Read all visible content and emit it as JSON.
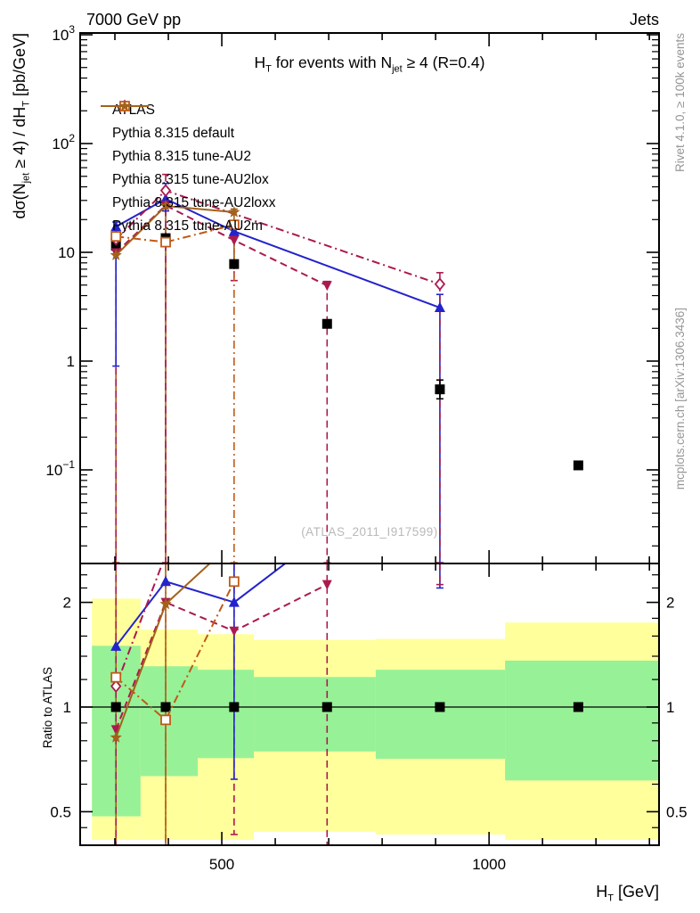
{
  "header": {
    "left": "7000 GeV pp",
    "right": "Jets"
  },
  "title_rich": [
    [
      "t",
      "H"
    ],
    [
      "sub",
      "T"
    ],
    [
      "t",
      " for events with N"
    ],
    [
      "sub",
      "jet"
    ],
    [
      "t",
      " ≥ 4 (R=0.4)"
    ]
  ],
  "ylabel_rich": [
    [
      "t",
      "dσ(N"
    ],
    [
      "sub",
      "jet"
    ],
    [
      "t",
      " ≥ 4) / dH"
    ],
    [
      "sub",
      "T"
    ],
    [
      "t",
      " [pb/GeV]"
    ]
  ],
  "xlabel_rich": [
    [
      "t",
      "H"
    ],
    [
      "sub",
      "T"
    ],
    [
      "t",
      " [GeV]"
    ]
  ],
  "ratio_ylabel": "Ratio to ATLAS",
  "watermark": "(ATLAS_2011_I917599)",
  "side_notes": {
    "top_right": "Rivet 4.1.0, ≥ 100k events",
    "bottom_right": "mcplots.cern.ch [arXiv:1306.3436]"
  },
  "colors": {
    "blue": "#2323cc",
    "maroon": "#ab1a4f",
    "orange": "#c05a15",
    "brown": "#a3621a",
    "black": "#000000",
    "band_green": "#97f197",
    "band_yellow": "#ffff9c",
    "note_gray": "#969696",
    "watermark_gray": "#b9b9b9"
  },
  "legend": [
    {
      "name": "ATLAS",
      "label": "ATLAS",
      "marker": "square",
      "color": "#000000",
      "line": "none"
    },
    {
      "name": "default",
      "label": "Pythia 8.315 default",
      "marker": "triangle-up",
      "color": "#2323cc",
      "line": "solid"
    },
    {
      "name": "tune-AU2",
      "label": "Pythia 8.315 tune-AU2",
      "marker": "triangle-down",
      "color": "#ab1a4f",
      "line": "dashed"
    },
    {
      "name": "tune-AU2lox",
      "label": "Pythia 8.315 tune-AU2lox",
      "marker": "diamond-open",
      "color": "#ab1a4f",
      "line": "dashdot"
    },
    {
      "name": "tune-AU2loxx",
      "label": "Pythia 8.315 tune-AU2loxx",
      "marker": "square-open",
      "color": "#c05a15",
      "line": "dashdot"
    },
    {
      "name": "tune-AU2m",
      "label": "Pythia 8.315 tune-AU2m",
      "marker": "star",
      "color": "#a3621a",
      "line": "solid"
    }
  ],
  "chart_data": {
    "type": "line",
    "title": "HT for events with Njet >= 4 (R=0.4)",
    "xlabel": "HT [GeV]",
    "ylabel": "dsigma(Njet >= 4) / dHT [pb/GeV]",
    "ratio_label": "Ratio to ATLAS",
    "x_axis": {
      "scale": "linear",
      "range": [
        235,
        1318
      ],
      "minor_step": 100,
      "minor_from": 300,
      "minor_to": 1300,
      "major_ticks": [
        {
          "v": 500,
          "label": "500"
        },
        {
          "v": 1000,
          "label": "1000"
        }
      ]
    },
    "main_y_axis": {
      "scale": "log",
      "range": [
        0.0138,
        1000
      ],
      "major_ticks": [
        {
          "v": 1000,
          "base": "10",
          "exp": "3"
        },
        {
          "v": 100,
          "base": "10",
          "exp": "2"
        },
        {
          "v": 10,
          "base": "10"
        },
        {
          "v": 1,
          "base": "1"
        },
        {
          "v": 0.1,
          "base": "10",
          "exp": "−1"
        }
      ]
    },
    "ratio_y_axis": {
      "scale": "log",
      "range": [
        0.4,
        2.59
      ],
      "major_ticks": [
        {
          "v": 2,
          "label": "2"
        },
        {
          "v": 1,
          "label": "1"
        },
        {
          "v": 0.5,
          "label": "0.5"
        }
      ],
      "minor_ticks": [
        2.4,
        2.2,
        1.8,
        1.6,
        1.4,
        1.2,
        0.9,
        0.8,
        0.7,
        0.6,
        0.45
      ]
    },
    "bin_centers_gev": [
      302,
      395,
      523,
      697,
      908,
      1167
    ],
    "series": [
      {
        "name": "ATLAS",
        "marker": "square",
        "color": "#000000",
        "line": "none",
        "points": [
          {
            "bin": 0,
            "v": 11.5
          },
          {
            "bin": 1,
            "v": 13.5
          },
          {
            "bin": 2,
            "v": 7.8
          },
          {
            "bin": 3,
            "v": 2.2
          },
          {
            "bin": 4,
            "v": 0.55
          },
          {
            "bin": 5,
            "v": 0.11
          }
        ]
      },
      {
        "name": "default",
        "marker": "triangle-up",
        "color": "#2323cc",
        "line": "solid",
        "points": [
          {
            "bin": 0,
            "v": 17.2
          },
          {
            "bin": 1,
            "v": 31.0
          },
          {
            "bin": 2,
            "v": 15.6
          },
          {
            "bin": 4,
            "v": 3.1
          }
        ]
      },
      {
        "name": "tune-AU2",
        "marker": "triangle-down",
        "color": "#ab1a4f",
        "line": "dashed",
        "points": [
          {
            "bin": 0,
            "v": 9.9
          },
          {
            "bin": 1,
            "v": 27.0
          },
          {
            "bin": 2,
            "v": 12.9
          },
          {
            "bin": 3,
            "v": 4.95
          }
        ]
      },
      {
        "name": "tune-AU2lox",
        "marker": "diamond-open",
        "color": "#ab1a4f",
        "line": "dashdot",
        "points": [
          {
            "bin": 0,
            "v": 13.2
          },
          {
            "bin": 1,
            "v": 37.0
          },
          {
            "bin": 4,
            "v": 5.1
          }
        ]
      },
      {
        "name": "tune-AU2loxx",
        "marker": "square-open",
        "color": "#c05a15",
        "line": "dashdot",
        "points": [
          {
            "bin": 0,
            "v": 14.0
          },
          {
            "bin": 1,
            "v": 12.4
          },
          {
            "bin": 2,
            "v": 17.9
          }
        ]
      },
      {
        "name": "tune-AU2m",
        "marker": "star",
        "color": "#a3621a",
        "line": "solid",
        "points": [
          {
            "bin": 0,
            "v": 9.4
          },
          {
            "bin": 1,
            "v": 26.7
          },
          {
            "bin": 2,
            "v": 23.4
          }
        ]
      }
    ],
    "main_error_bars": [
      {
        "x": 302,
        "lo": 0.014,
        "hi": 16,
        "color": "#a3621a",
        "dash": "solid"
      },
      {
        "x": 302,
        "lo": 0.014,
        "hi": 13,
        "color": "#ab1a4f",
        "dash": "dashed"
      },
      {
        "x": 302,
        "lo": 0.9,
        "hi": 19,
        "color": "#2323cc",
        "dash": "solid"
      },
      {
        "x": 395,
        "lo": 0.014,
        "hi": 37,
        "color": "#c05a15",
        "dash": "dashdot"
      },
      {
        "x": 395,
        "lo": 0.014,
        "hi": 28,
        "color": "#a3621a",
        "dash": "solid"
      },
      {
        "x": 395,
        "lo": 0.014,
        "hi": 52,
        "color": "#ab1a4f",
        "dash": "dashed"
      },
      {
        "x": 395,
        "lo": 24,
        "hi": 43,
        "color": "#2323cc",
        "dash": "solid"
      },
      {
        "x": 523,
        "lo": 5.5,
        "hi": 14,
        "color": "#ab1a4f",
        "dash": "dashed"
      },
      {
        "x": 523,
        "lo": 0.014,
        "hi": 19,
        "color": "#c05a15",
        "dash": "dashdot"
      },
      {
        "x": 523,
        "lo": 8,
        "hi": 25,
        "color": "#a3621a",
        "dash": "solid"
      },
      {
        "x": 697,
        "lo": 0.014,
        "hi": 5.4,
        "color": "#ab1a4f",
        "dash": "dashed"
      },
      {
        "x": 908,
        "lo": 0.014,
        "hi": 4.1,
        "color": "#2323cc",
        "dash": "solid"
      },
      {
        "x": 908,
        "lo": 0.014,
        "hi": 6.5,
        "color": "#ab1a4f",
        "dash": "dashed"
      },
      {
        "x": 908,
        "lo": 0.45,
        "hi": 0.67,
        "color": "#000000",
        "dash": "solid"
      }
    ],
    "ratio_error_bars": [
      {
        "x": 302,
        "lo": 0.4,
        "hi": 2.59,
        "color": "#a3621a",
        "dash": "solid"
      },
      {
        "x": 302,
        "lo": 0.4,
        "hi": 2.59,
        "color": "#ab1a4f",
        "dash": "dashed"
      },
      {
        "x": 395,
        "lo": 0.4,
        "hi": 2.59,
        "color": "#a3621a",
        "dash": "solid"
      },
      {
        "x": 395,
        "lo": 0.4,
        "hi": 2.59,
        "color": "#c05a15",
        "dash": "dashdot"
      },
      {
        "x": 523,
        "lo": 0.43,
        "hi": 2.59,
        "color": "#ab1a4f",
        "dash": "dashed"
      },
      {
        "x": 523,
        "lo": 0.62,
        "hi": 2.59,
        "color": "#2323cc",
        "dash": "solid"
      },
      {
        "x": 697,
        "lo": 0.4,
        "hi": 2.59,
        "color": "#ab1a4f",
        "dash": "dashed"
      },
      {
        "x": 908,
        "lo": 2.2,
        "hi": 2.59,
        "color": "#2323cc",
        "dash": "solid"
      },
      {
        "x": 908,
        "lo": 2.25,
        "hi": 2.59,
        "color": "#ab1a4f",
        "dash": "dashed"
      }
    ],
    "ratio_bands": {
      "edges_gev": [
        257,
        348,
        455,
        560,
        788,
        1030,
        1318
      ],
      "yellow": [
        [
          0.415,
          2.05
        ],
        [
          0.415,
          1.67
        ],
        [
          0.415,
          1.62
        ],
        [
          0.438,
          1.56
        ],
        [
          0.43,
          1.57
        ],
        [
          0.415,
          1.75
        ]
      ],
      "green": [
        [
          0.485,
          1.5
        ],
        [
          0.633,
          1.31
        ],
        [
          0.713,
          1.28
        ],
        [
          0.745,
          1.22
        ],
        [
          0.71,
          1.28
        ],
        [
          0.615,
          1.36
        ]
      ]
    }
  }
}
